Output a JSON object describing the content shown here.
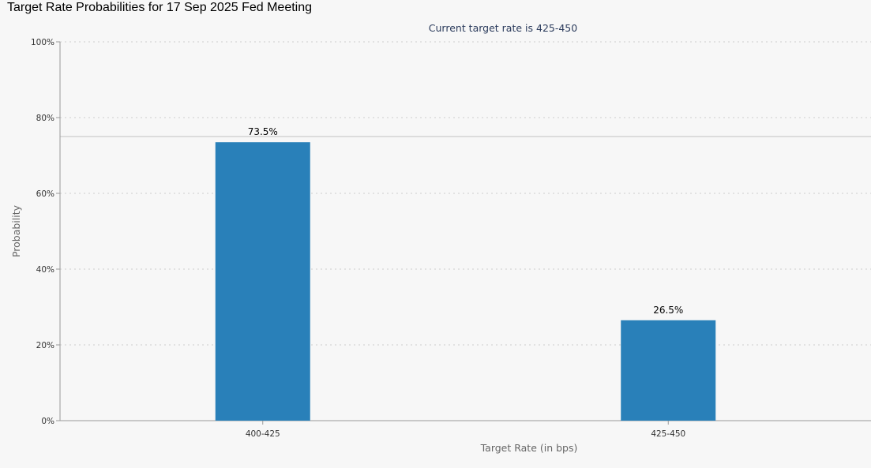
{
  "page": {
    "title": "Target Rate Probabilities for 17 Sep 2025 Fed Meeting"
  },
  "chart_data": {
    "type": "bar",
    "subtitle": "Current target rate is 425-450",
    "xlabel": "Target Rate (in bps)",
    "ylabel": "Probability",
    "categories": [
      "400-425",
      "425-450"
    ],
    "values": [
      73.5,
      26.5
    ],
    "value_labels": [
      "73.5%",
      "26.5%"
    ],
    "ylim": [
      0,
      100
    ],
    "yticks": [
      0,
      20,
      40,
      60,
      80,
      100
    ],
    "ytick_labels": [
      "0%",
      "20%",
      "40%",
      "60%",
      "80%",
      "100%"
    ],
    "reference_line": 75,
    "grid": true,
    "bar_color": "#2980b9",
    "reference_line_color": "#c0c0c0",
    "gridline_color": "#cccccc"
  }
}
